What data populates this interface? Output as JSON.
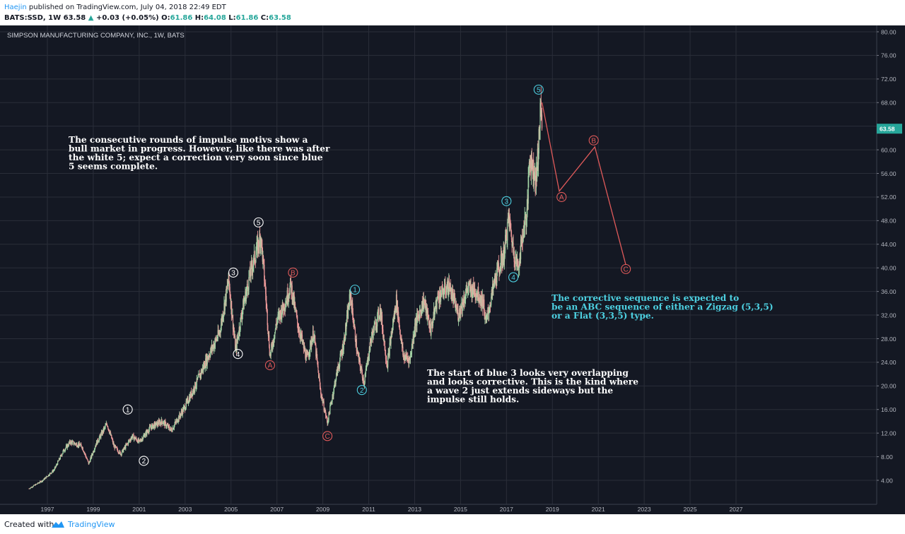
{
  "header": {
    "author": "Haejin",
    "published": "published on TradingView.com, July 04, 2018 22:49 EDT",
    "symbol": "BATS:SSD, 1W",
    "last": "63.58",
    "change_arrow": "▲",
    "change": "+0.03 (+0.05%)",
    "o_label": "O:",
    "o_value": "61.86",
    "h_label": "H:",
    "h_value": "64.08",
    "l_label": "L:",
    "l_value": "61.86",
    "c_label": "C:",
    "c_value": "63.58"
  },
  "footer": {
    "created_with": "Created with",
    "brand": "TradingView"
  },
  "colors": {
    "background": "#141823",
    "grid": "#2a2e39",
    "white_wave": "#ffffff",
    "blue_wave": "#4dd0e1",
    "red_wave": "#e05a5a",
    "up_candle": "#a5d6a7",
    "down_candle": "#ef9a9a",
    "price_badge": "#26a69a",
    "annotation_blue": "#4dd0e1"
  },
  "chart_data": {
    "type": "candlestick",
    "title": "SIMPSON MANUFACTURING COMPANY, INC., 1W, BATS",
    "ylim": [
      2,
      80
    ],
    "y_ticks": [
      "80.00",
      "76.00",
      "72.00",
      "68.00",
      "64.00",
      "60.00",
      "56.00",
      "52.00",
      "48.00",
      "44.00",
      "40.00",
      "36.00",
      "32.00",
      "28.00",
      "24.00",
      "20.00",
      "16.00",
      "12.00",
      "8.00",
      "4.00"
    ],
    "x_ticks": [
      "1997",
      "1999",
      "2001",
      "2003",
      "2005",
      "2007",
      "2009",
      "2011",
      "2013",
      "2015",
      "2017",
      "2019",
      "2021",
      "2023",
      "2025",
      "2027"
    ],
    "last_price_label": "63.58",
    "price_path": [
      [
        1996.2,
        2.6
      ],
      [
        1996.8,
        4.0
      ],
      [
        1997.3,
        5.8
      ],
      [
        1997.7,
        9.0
      ],
      [
        1998.0,
        10.5
      ],
      [
        1998.5,
        9.8
      ],
      [
        1998.8,
        6.8
      ],
      [
        1999.1,
        10.0
      ],
      [
        1999.6,
        13.6
      ],
      [
        1999.9,
        9.8
      ],
      [
        2000.2,
        8.5
      ],
      [
        2000.7,
        11.5
      ],
      [
        2001.0,
        10.5
      ],
      [
        2001.5,
        13.0
      ],
      [
        2002.0,
        14.0
      ],
      [
        2002.4,
        12.5
      ],
      [
        2003.0,
        16.5
      ],
      [
        2003.5,
        20.5
      ],
      [
        2004.0,
        25.0
      ],
      [
        2004.5,
        29.0
      ],
      [
        2004.9,
        38.0
      ],
      [
        2005.2,
        26.0
      ],
      [
        2005.5,
        33.0
      ],
      [
        2005.9,
        40.0
      ],
      [
        2006.3,
        45.5
      ],
      [
        2006.5,
        36.0
      ],
      [
        2006.7,
        25.0
      ],
      [
        2007.0,
        31.0
      ],
      [
        2007.4,
        34.5
      ],
      [
        2007.6,
        37.2
      ],
      [
        2007.9,
        30.5
      ],
      [
        2008.3,
        24.5
      ],
      [
        2008.6,
        29.0
      ],
      [
        2008.9,
        19.0
      ],
      [
        2009.2,
        13.8
      ],
      [
        2009.6,
        22.0
      ],
      [
        2009.9,
        27.0
      ],
      [
        2010.2,
        35.5
      ],
      [
        2010.5,
        25.5
      ],
      [
        2010.8,
        20.5
      ],
      [
        2011.1,
        28.0
      ],
      [
        2011.5,
        33.0
      ],
      [
        2011.8,
        23.5
      ],
      [
        2012.2,
        34.5
      ],
      [
        2012.5,
        25.0
      ],
      [
        2012.8,
        24.5
      ],
      [
        2013.0,
        30.0
      ],
      [
        2013.4,
        34.5
      ],
      [
        2013.7,
        29.5
      ],
      [
        2014.0,
        35.0
      ],
      [
        2014.5,
        37.0
      ],
      [
        2014.9,
        32.0
      ],
      [
        2015.3,
        36.5
      ],
      [
        2015.7,
        36.0
      ],
      [
        2016.0,
        34.0
      ],
      [
        2016.1,
        30.5
      ],
      [
        2016.5,
        38.0
      ],
      [
        2016.9,
        42.5
      ],
      [
        2017.1,
        48.5
      ],
      [
        2017.3,
        43.0
      ],
      [
        2017.5,
        40.0
      ],
      [
        2017.8,
        48.0
      ],
      [
        2017.9,
        49.0
      ],
      [
        2018.0,
        59.0
      ],
      [
        2018.3,
        55.0
      ],
      [
        2018.5,
        67.5
      ],
      [
        2018.55,
        63.58
      ]
    ],
    "projection": {
      "color": "#e05a5a",
      "points": [
        [
          2018.55,
          68.0
        ],
        [
          2019.3,
          53.0
        ],
        [
          2020.85,
          60.5
        ],
        [
          2022.2,
          40.5
        ]
      ]
    },
    "wave_labels": [
      {
        "label": "1",
        "x": 2000.5,
        "y": 16.0,
        "style": "white"
      },
      {
        "label": "2",
        "x": 2001.2,
        "y": 7.3,
        "style": "white"
      },
      {
        "label": "3",
        "x": 2005.1,
        "y": 39.2,
        "style": "white"
      },
      {
        "label": "4",
        "x": 2005.3,
        "y": 25.4,
        "style": "white"
      },
      {
        "label": "5",
        "x": 2006.2,
        "y": 47.7,
        "style": "white"
      },
      {
        "label": "A",
        "x": 2006.7,
        "y": 23.5,
        "style": "red"
      },
      {
        "label": "B",
        "x": 2007.7,
        "y": 39.2,
        "style": "red"
      },
      {
        "label": "C",
        "x": 2009.2,
        "y": 11.5,
        "style": "red"
      },
      {
        "label": "1",
        "x": 2010.4,
        "y": 36.3,
        "style": "blue"
      },
      {
        "label": "2",
        "x": 2010.7,
        "y": 19.3,
        "style": "blue"
      },
      {
        "label": "3",
        "x": 2017.0,
        "y": 51.3,
        "style": "blue"
      },
      {
        "label": "4",
        "x": 2017.3,
        "y": 38.4,
        "style": "blue"
      },
      {
        "label": "5",
        "x": 2018.4,
        "y": 70.2,
        "style": "blue"
      },
      {
        "label": "A",
        "x": 2019.4,
        "y": 52.0,
        "style": "red"
      },
      {
        "label": "B",
        "x": 2020.8,
        "y": 61.6,
        "style": "red"
      },
      {
        "label": "C",
        "x": 2022.2,
        "y": 39.8,
        "style": "red"
      }
    ],
    "annotations": [
      {
        "style": "white",
        "lines": [
          "The consecutive rounds of impulse motivs show a",
          "bull market in progress. However, like there was after",
          "the white 5; expect a correction very soon since blue",
          "5 seems complete."
        ]
      },
      {
        "style": "white",
        "lines": [
          "The start of blue 3 looks very overlapping",
          "and looks corrective. This is the kind where",
          "a wave 2 just extends sideways but the",
          "impulse still holds."
        ]
      },
      {
        "style": "blue",
        "lines": [
          "The corrective sequence is expected to",
          "be an ABC sequence of either a Zigzag (5,3,5)",
          "or a Flat (3,3,5) type."
        ]
      }
    ]
  }
}
